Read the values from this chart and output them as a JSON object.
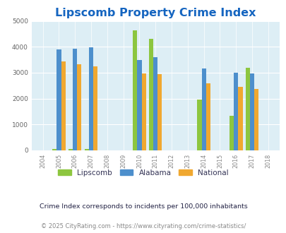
{
  "title": "Lipscomb Property Crime Index",
  "years": [
    2004,
    2005,
    2006,
    2007,
    2008,
    2009,
    2010,
    2011,
    2012,
    2013,
    2014,
    2015,
    2016,
    2017,
    2018
  ],
  "lipscomb": [
    0,
    50,
    50,
    50,
    0,
    0,
    4630,
    4300,
    0,
    0,
    1960,
    0,
    1330,
    3200,
    0
  ],
  "alabama": [
    0,
    3900,
    3940,
    3970,
    0,
    0,
    3490,
    3600,
    0,
    0,
    3150,
    0,
    2990,
    2980,
    0
  ],
  "national": [
    0,
    3440,
    3330,
    3240,
    0,
    0,
    2960,
    2940,
    0,
    0,
    2600,
    0,
    2460,
    2360,
    0
  ],
  "lipscomb_color": "#8dc63f",
  "alabama_color": "#4d8fcc",
  "national_color": "#f0a830",
  "bg_color": "#ddeef5",
  "ylim": [
    0,
    5000
  ],
  "yticks": [
    0,
    1000,
    2000,
    3000,
    4000,
    5000
  ],
  "bar_width": 0.27,
  "title_color": "#1565c0",
  "title_fontsize": 11.5,
  "note_text": "Crime Index corresponds to incidents per 100,000 inhabitants",
  "footer_text": "© 2025 CityRating.com - https://www.cityrating.com/crime-statistics/",
  "legend_labels": [
    "Lipscomb",
    "Alabama",
    "National"
  ],
  "legend_text_color": "#333355"
}
